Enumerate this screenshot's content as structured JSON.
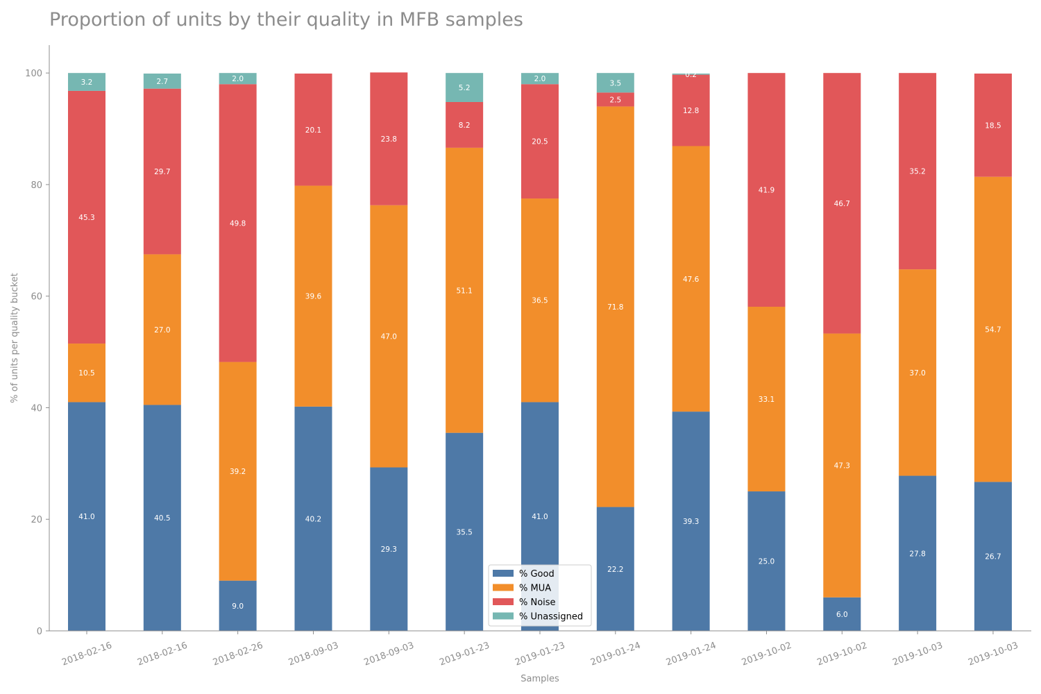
{
  "chart_data": {
    "type": "bar",
    "stacked": true,
    "title": "Proportion of units by their quality in MFB samples",
    "xlabel": "Samples",
    "ylabel": "% of units per quality bucket",
    "ylim": [
      0,
      105
    ],
    "yticks": [
      "0",
      "20",
      "40",
      "60",
      "80",
      "100"
    ],
    "categories": [
      "2018-02-16",
      "2018-02-16",
      "2018-02-26",
      "2018-09-03",
      "2018-09-03",
      "2019-01-23",
      "2019-01-23",
      "2019-01-24",
      "2019-01-24",
      "2019-10-02",
      "2019-10-02",
      "2019-10-03",
      "2019-10-03"
    ],
    "series": [
      {
        "name": "% Good",
        "color": "#4e79a7",
        "values": [
          41.0,
          40.5,
          9.0,
          40.2,
          29.3,
          35.5,
          41.0,
          22.2,
          39.3,
          25.0,
          6.0,
          27.8,
          26.7
        ]
      },
      {
        "name": "% MUA",
        "color": "#f28e2b",
        "values": [
          10.5,
          27.0,
          39.2,
          39.6,
          47.0,
          51.1,
          36.5,
          71.8,
          47.6,
          33.1,
          47.3,
          37.0,
          54.7
        ]
      },
      {
        "name": "% Noise",
        "color": "#e15759",
        "values": [
          45.3,
          29.7,
          49.8,
          20.1,
          23.8,
          8.2,
          20.5,
          2.5,
          12.8,
          41.9,
          46.7,
          35.2,
          18.5
        ]
      },
      {
        "name": "% Unassigned",
        "color": "#76b7b2",
        "values": [
          3.2,
          2.7,
          2.0,
          null,
          null,
          5.2,
          2.0,
          3.5,
          0.2,
          null,
          null,
          null,
          null
        ]
      }
    ],
    "legend_position": "bottom-center",
    "grid": false
  }
}
